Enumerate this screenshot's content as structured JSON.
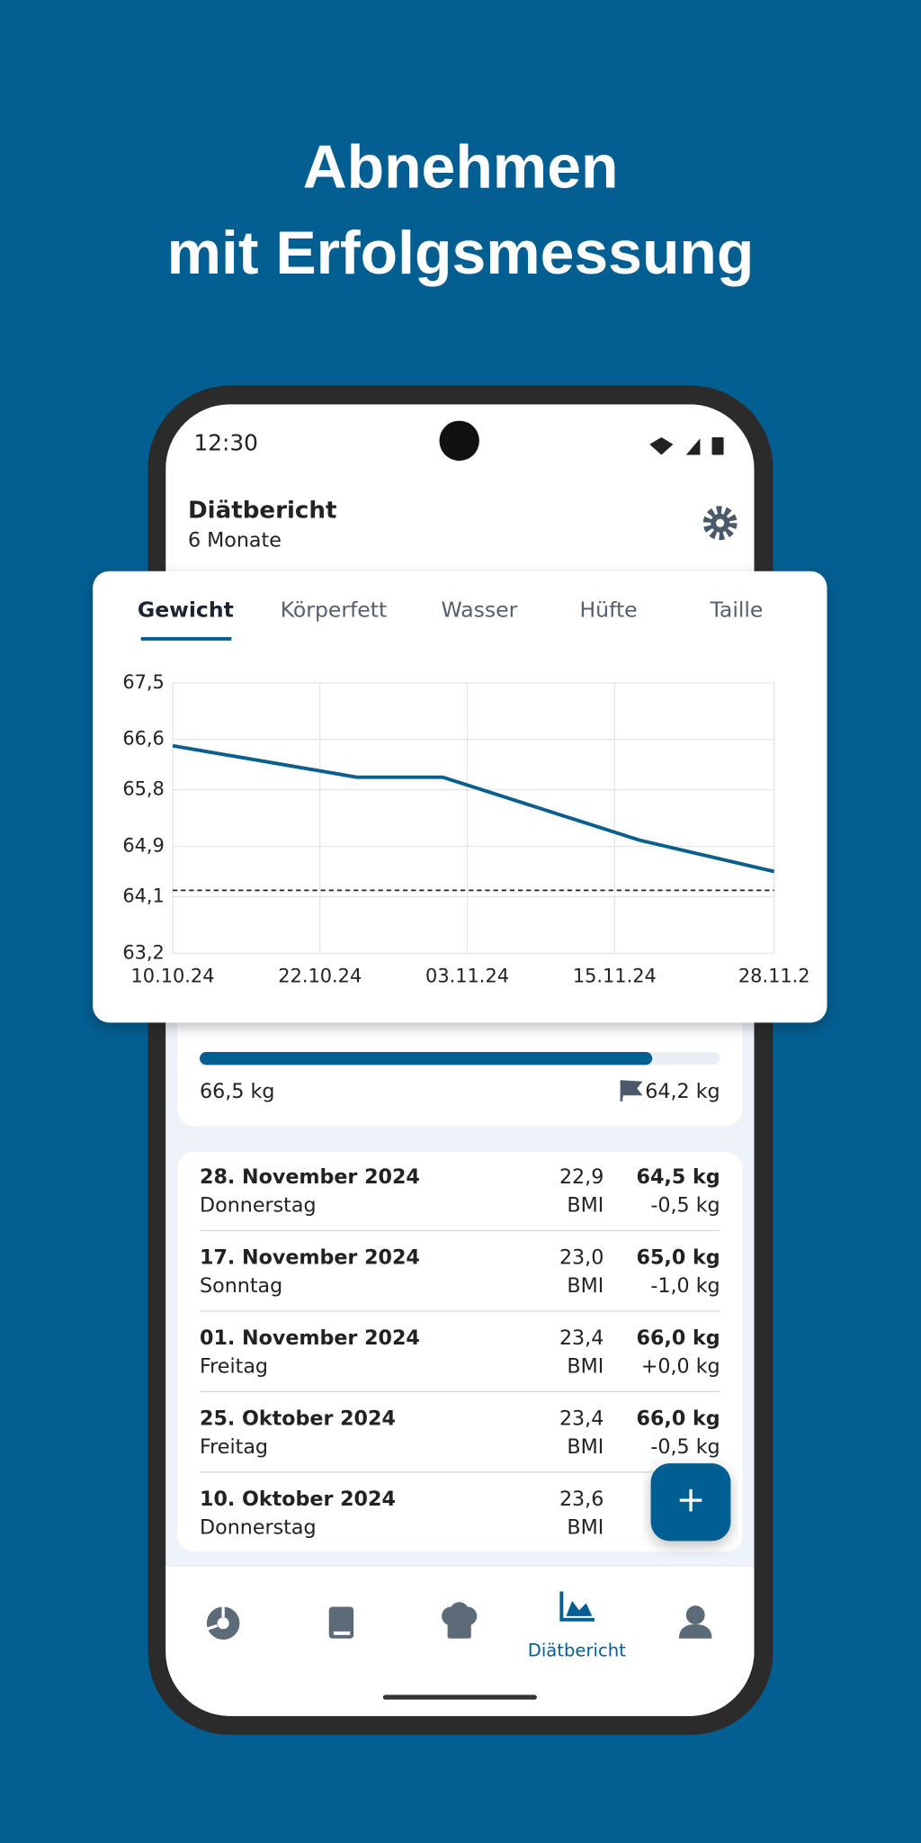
{
  "headline": {
    "line1": "Abnehmen",
    "line2": "mit Erfolgsmessung"
  },
  "status": {
    "time": "12:30"
  },
  "header": {
    "title": "Diätbericht",
    "subtitle": "6 Monate"
  },
  "tabs": [
    "Gewicht",
    "Körperfett",
    "Wasser",
    "Hüfte",
    "Taille"
  ],
  "chart_data": {
    "type": "line",
    "x": [
      "10.10.24",
      "25.10.24",
      "01.11.24",
      "17.11.24",
      "28.11.24"
    ],
    "series": [
      {
        "name": "Gewicht",
        "color": "#0b5f8f",
        "values": [
          66.5,
          66.0,
          66.0,
          65.0,
          64.5
        ]
      }
    ],
    "goal": 64.2,
    "xlim": [
      "10.10.24",
      "28.11.24"
    ],
    "xticks": [
      "10.10.24",
      "22.10.24",
      "03.11.24",
      "15.11.24",
      {
        "value": "28.11.24",
        "label": "28.11.2"
      }
    ],
    "ylim": [
      63.2,
      67.5
    ],
    "yticks": [
      {
        "value": 63.2,
        "label": "63,2"
      },
      {
        "value": 64.1,
        "label": "64,1"
      },
      {
        "value": 64.9,
        "label": "64,9"
      },
      {
        "value": 65.8,
        "label": "65,8"
      },
      {
        "value": 66.6,
        "label": "66,6"
      },
      {
        "value": 67.5,
        "label": "67,5"
      }
    ],
    "grid": true
  },
  "progress": {
    "start": "66,5 kg",
    "goal": "64,2 kg"
  },
  "entries": [
    {
      "date": "28. November 2024",
      "weekday": "Donnerstag",
      "bmi": "22,9",
      "bmi_label": "BMI",
      "weight": "64,5 kg",
      "change": "-0,5 kg"
    },
    {
      "date": "17. November 2024",
      "weekday": "Sonntag",
      "bmi": "23,0",
      "bmi_label": "BMI",
      "weight": "65,0 kg",
      "change": "-1,0 kg"
    },
    {
      "date": "01. November 2024",
      "weekday": "Freitag",
      "bmi": "23,4",
      "bmi_label": "BMI",
      "weight": "66,0 kg",
      "change": "+0,0 kg"
    },
    {
      "date": "25. Oktober 2024",
      "weekday": "Freitag",
      "bmi": "23,4",
      "bmi_label": "BMI",
      "weight": "66,0 kg",
      "change": "-0,5 kg"
    },
    {
      "date": "10. Oktober 2024",
      "weekday": "Donnerstag",
      "bmi": "23,6",
      "bmi_label": "BMI"
    }
  ],
  "fab": "+",
  "nav": {
    "active": "Diätbericht"
  }
}
